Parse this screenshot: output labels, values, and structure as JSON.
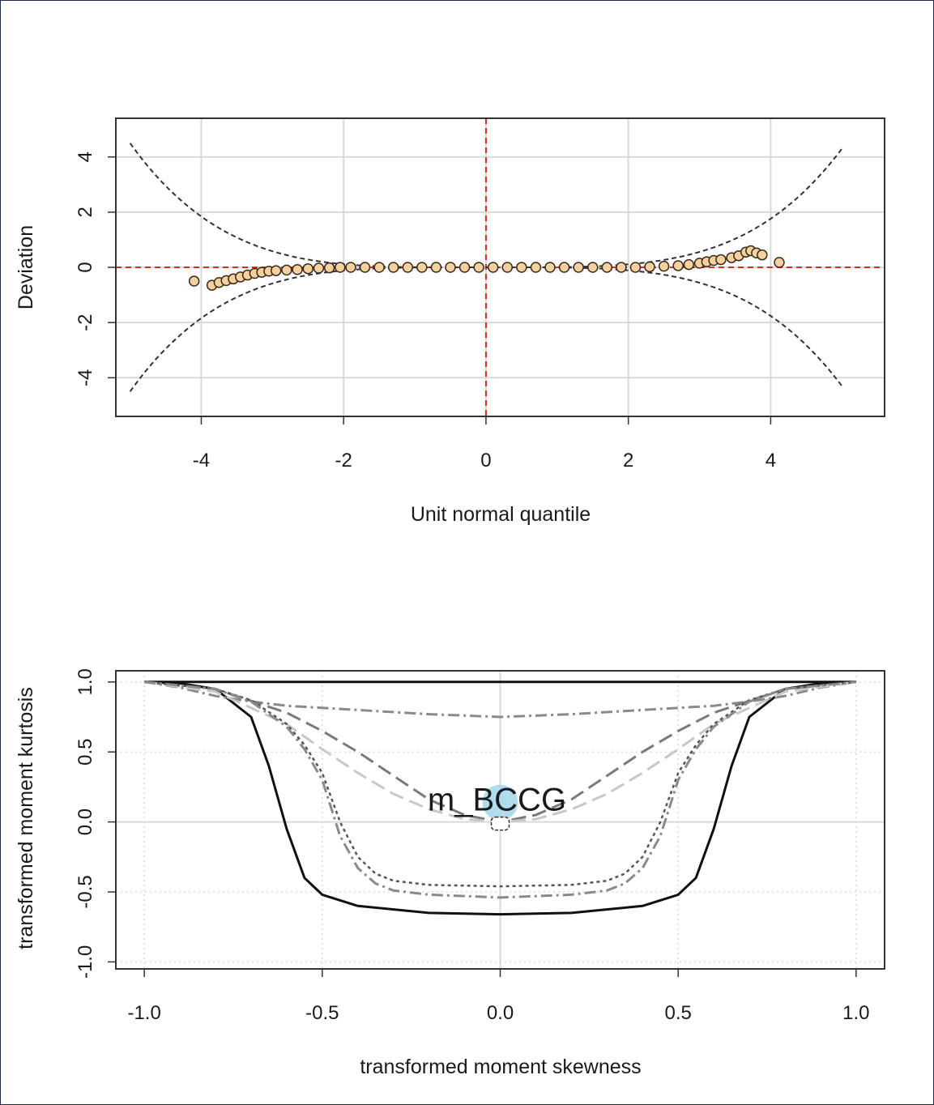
{
  "colors": {
    "frame": "#1f2d4a",
    "grid": "#d9d9d9",
    "reference_line": "#e0291c",
    "points_fill": "#f6d1a0",
    "points_stroke": "#3a2a1a",
    "envelope": "#333333",
    "highlight": "#a9d8ec"
  },
  "chart_data": [
    {
      "type": "scatter",
      "title": "",
      "xlabel": "Unit normal quantile",
      "ylabel": "Deviation",
      "xlim": [
        -5.2,
        5.6
      ],
      "ylim": [
        -5.4,
        5.4
      ],
      "x_ticks": [
        "-4",
        "-2",
        "0",
        "2",
        "4"
      ],
      "y_ticks": [
        "-4",
        "-2",
        "0",
        "2",
        "4"
      ],
      "grid": true,
      "reference_lines": {
        "h": 0,
        "v": 0,
        "style": "red dashed"
      },
      "envelope": {
        "style": "black dashed",
        "x_range": [
          -5,
          5
        ],
        "upper_at_-5": 4.5,
        "upper_at_5": 4.3
      },
      "points": [
        {
          "x": -4.1,
          "y": -0.5
        },
        {
          "x": -3.85,
          "y": -0.65
        },
        {
          "x": -3.75,
          "y": -0.55
        },
        {
          "x": -3.65,
          "y": -0.48
        },
        {
          "x": -3.55,
          "y": -0.42
        },
        {
          "x": -3.45,
          "y": -0.35
        },
        {
          "x": -3.35,
          "y": -0.28
        },
        {
          "x": -3.25,
          "y": -0.22
        },
        {
          "x": -3.15,
          "y": -0.18
        },
        {
          "x": -3.05,
          "y": -0.14
        },
        {
          "x": -2.95,
          "y": -0.12
        },
        {
          "x": -2.8,
          "y": -0.1
        },
        {
          "x": -2.65,
          "y": -0.08
        },
        {
          "x": -2.5,
          "y": -0.05
        },
        {
          "x": -2.35,
          "y": -0.03
        },
        {
          "x": -2.2,
          "y": -0.02
        },
        {
          "x": -2.05,
          "y": 0.0
        },
        {
          "x": -1.9,
          "y": 0.0
        },
        {
          "x": -1.7,
          "y": 0.0
        },
        {
          "x": -1.5,
          "y": 0.0
        },
        {
          "x": -1.3,
          "y": 0.0
        },
        {
          "x": -1.1,
          "y": 0.0
        },
        {
          "x": -0.9,
          "y": 0.0
        },
        {
          "x": -0.7,
          "y": 0.0
        },
        {
          "x": -0.5,
          "y": 0.0
        },
        {
          "x": -0.3,
          "y": 0.0
        },
        {
          "x": -0.1,
          "y": 0.0
        },
        {
          "x": 0.1,
          "y": 0.0
        },
        {
          "x": 0.3,
          "y": 0.0
        },
        {
          "x": 0.5,
          "y": 0.0
        },
        {
          "x": 0.7,
          "y": 0.0
        },
        {
          "x": 0.9,
          "y": 0.0
        },
        {
          "x": 1.1,
          "y": 0.0
        },
        {
          "x": 1.3,
          "y": 0.0
        },
        {
          "x": 1.5,
          "y": 0.0
        },
        {
          "x": 1.7,
          "y": 0.0
        },
        {
          "x": 1.9,
          "y": 0.0
        },
        {
          "x": 2.1,
          "y": 0.0
        },
        {
          "x": 2.3,
          "y": 0.02
        },
        {
          "x": 2.5,
          "y": 0.04
        },
        {
          "x": 2.7,
          "y": 0.06
        },
        {
          "x": 2.85,
          "y": 0.1
        },
        {
          "x": 3.0,
          "y": 0.15
        },
        {
          "x": 3.1,
          "y": 0.2
        },
        {
          "x": 3.2,
          "y": 0.25
        },
        {
          "x": 3.3,
          "y": 0.28
        },
        {
          "x": 3.45,
          "y": 0.35
        },
        {
          "x": 3.55,
          "y": 0.42
        },
        {
          "x": 3.65,
          "y": 0.55
        },
        {
          "x": 3.72,
          "y": 0.6
        },
        {
          "x": 3.8,
          "y": 0.52
        },
        {
          "x": 3.88,
          "y": 0.45
        },
        {
          "x": 4.12,
          "y": 0.18
        }
      ]
    },
    {
      "type": "line",
      "title": "",
      "xlabel": "transformed moment skewness",
      "ylabel": "transformed moment kurtosis",
      "xlim": [
        -1.08,
        1.08
      ],
      "ylim": [
        -1.05,
        1.08
      ],
      "x_ticks": [
        "-1.0",
        "-0.5",
        "0.0",
        "0.5",
        "1.0"
      ],
      "y_ticks": [
        "-1.0",
        "-0.5",
        "0.0",
        "0.5",
        "1.0"
      ],
      "grid": true,
      "annotation": {
        "text": "m_BCCG",
        "x": 0.0,
        "y": 0.0
      },
      "series": [
        {
          "style": "solid black top",
          "x": [
            -1,
            -0.5,
            0,
            0.5,
            1
          ],
          "y": [
            1,
            1,
            1,
            1,
            1
          ]
        },
        {
          "style": "solid black",
          "x": [
            -1,
            -0.9,
            -0.8,
            -0.7,
            -0.65,
            -0.6,
            -0.55,
            -0.5,
            -0.4,
            -0.2,
            0,
            0.2,
            0.4,
            0.5,
            0.55,
            0.6,
            0.65,
            0.7,
            0.8,
            0.9,
            1
          ],
          "y": [
            1.0,
            0.99,
            0.95,
            0.75,
            0.4,
            -0.05,
            -0.4,
            -0.52,
            -0.6,
            -0.65,
            -0.66,
            -0.65,
            -0.6,
            -0.52,
            -0.4,
            -0.05,
            0.4,
            0.75,
            0.95,
            0.99,
            1.0
          ]
        },
        {
          "style": "dot-dash gray",
          "x": [
            -1,
            -0.9,
            -0.8,
            -0.7,
            -0.6,
            -0.4,
            -0.2,
            0,
            0.2,
            0.4,
            0.6,
            0.7,
            0.8,
            0.9,
            1
          ],
          "y": [
            1.0,
            0.96,
            0.9,
            0.86,
            0.83,
            0.8,
            0.77,
            0.75,
            0.77,
            0.8,
            0.83,
            0.86,
            0.9,
            0.96,
            1.0
          ]
        },
        {
          "style": "long dash dark gray",
          "x": [
            -1,
            -0.8,
            -0.6,
            -0.5,
            -0.4,
            -0.3,
            -0.2,
            -0.1,
            0,
            0.1,
            0.2,
            0.3,
            0.4,
            0.5,
            0.6,
            0.8,
            1
          ],
          "y": [
            1.0,
            0.95,
            0.78,
            0.65,
            0.5,
            0.33,
            0.16,
            0.05,
            0.0,
            0.05,
            0.16,
            0.33,
            0.5,
            0.65,
            0.78,
            0.95,
            1.0
          ]
        },
        {
          "style": "long dash light gray",
          "x": [
            -1,
            -0.8,
            -0.6,
            -0.5,
            -0.4,
            -0.3,
            -0.2,
            -0.1,
            0,
            0.1,
            0.2,
            0.3,
            0.4,
            0.5,
            0.6,
            0.8,
            1
          ],
          "y": [
            1.0,
            0.93,
            0.7,
            0.52,
            0.35,
            0.2,
            0.09,
            0.02,
            0.0,
            0.02,
            0.09,
            0.2,
            0.35,
            0.52,
            0.7,
            0.93,
            1.0
          ]
        },
        {
          "style": "dotted dark gray",
          "x": [
            -1,
            -0.8,
            -0.7,
            -0.6,
            -0.55,
            -0.5,
            -0.45,
            -0.4,
            -0.35,
            -0.3,
            -0.2,
            0,
            0.2,
            0.3,
            0.35,
            0.4,
            0.45,
            0.5,
            0.55,
            0.6,
            0.7,
            0.8,
            1
          ],
          "y": [
            1.0,
            0.95,
            0.87,
            0.7,
            0.55,
            0.35,
            0.0,
            -0.25,
            -0.37,
            -0.42,
            -0.45,
            -0.46,
            -0.45,
            -0.42,
            -0.37,
            -0.25,
            0.0,
            0.35,
            0.55,
            0.7,
            0.87,
            0.95,
            1.0
          ]
        },
        {
          "style": "dot-dash gray",
          "x": [
            -1,
            -0.8,
            -0.7,
            -0.6,
            -0.55,
            -0.5,
            -0.45,
            -0.4,
            -0.35,
            -0.3,
            -0.2,
            0,
            0.2,
            0.3,
            0.35,
            0.4,
            0.45,
            0.5,
            0.55,
            0.6,
            0.7,
            0.8,
            1
          ],
          "y": [
            1.0,
            0.95,
            0.86,
            0.68,
            0.52,
            0.3,
            -0.1,
            -0.33,
            -0.44,
            -0.49,
            -0.52,
            -0.54,
            -0.52,
            -0.49,
            -0.44,
            -0.33,
            -0.1,
            0.3,
            0.52,
            0.68,
            0.86,
            0.95,
            1.0
          ]
        }
      ]
    }
  ]
}
